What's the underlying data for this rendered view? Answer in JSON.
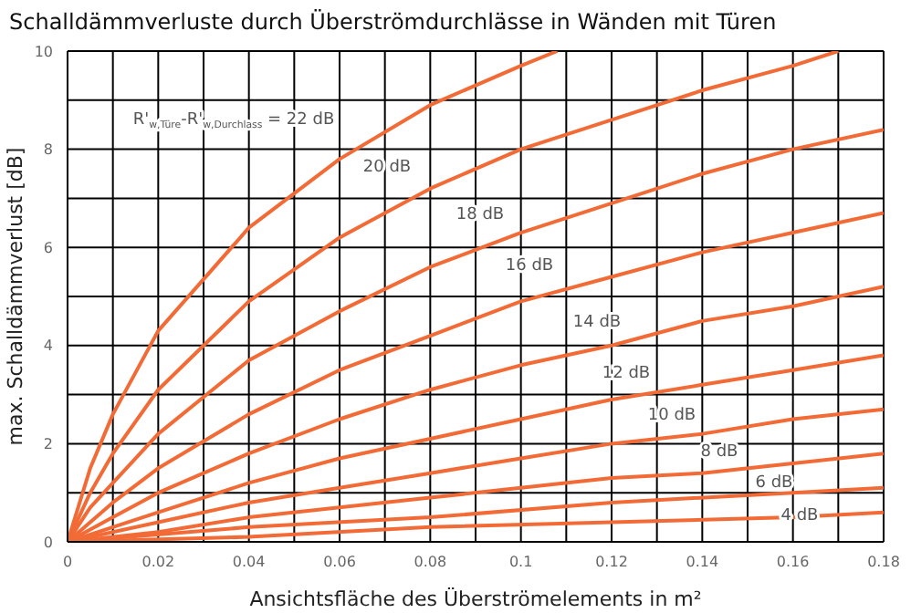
{
  "chart_data": {
    "type": "line",
    "title": "Schalldämmverluste durch Überströmdurchlässe in Wänden mit Türen",
    "xlabel": "Ansichtsfläche des Überströmelements in m²",
    "ylabel": "max. Schalldämmverlust [dB]",
    "xlim": [
      0,
      0.18
    ],
    "ylim": [
      0,
      10
    ],
    "xticks": [
      0,
      {
        "value": 0.01,
        "label": null
      },
      0.02,
      {
        "value": 0.03,
        "label": null
      },
      0.04,
      {
        "value": 0.05,
        "label": null
      },
      0.06,
      {
        "value": 0.07,
        "label": null
      },
      0.08,
      {
        "value": 0.09,
        "label": null
      },
      0.1,
      {
        "value": 0.11,
        "label": null
      },
      0.12,
      {
        "value": 0.13,
        "label": null
      },
      0.14,
      {
        "value": 0.15,
        "label": null
      },
      0.16,
      {
        "value": 0.17,
        "label": null
      },
      0.18
    ],
    "yticks": [
      0,
      {
        "value": 1,
        "label": null
      },
      2,
      {
        "value": 3,
        "label": null
      },
      4,
      {
        "value": 5,
        "label": null
      },
      6,
      {
        "value": 7,
        "label": null
      },
      8,
      {
        "value": 9,
        "label": null
      },
      10
    ],
    "grid": true,
    "legend": false,
    "marker": "none",
    "line_style": "solid",
    "series": [
      {
        "color": "#f26b36",
        "x": [
          0,
          0.005,
          0.01,
          0.02,
          0.04,
          0.06,
          0.08,
          0.1,
          0.108
        ],
        "values": [
          0,
          1.5,
          2.6,
          4.3,
          6.4,
          7.8,
          8.9,
          9.7,
          10
        ]
      },
      {
        "color": "#f26b36",
        "x": [
          0,
          0.005,
          0.01,
          0.02,
          0.04,
          0.06,
          0.08,
          0.1,
          0.12,
          0.14,
          0.16,
          0.17
        ],
        "values": [
          0,
          1,
          1.8,
          3.1,
          4.9,
          6.2,
          7.2,
          8,
          8.6,
          9.2,
          9.7,
          10
        ]
      },
      {
        "color": "#f26b36",
        "x": [
          0,
          0.005,
          0.01,
          0.02,
          0.04,
          0.06,
          0.08,
          0.1,
          0.12,
          0.14,
          0.16,
          0.18
        ],
        "values": [
          0,
          0.7,
          1.2,
          2.2,
          3.7,
          4.7,
          5.6,
          6.3,
          6.9,
          7.5,
          8,
          8.4
        ]
      },
      {
        "color": "#f26b36",
        "x": [
          0,
          0.005,
          0.01,
          0.02,
          0.04,
          0.06,
          0.08,
          0.1,
          0.12,
          0.14,
          0.16,
          0.18
        ],
        "values": [
          0,
          0.4,
          0.8,
          1.5,
          2.6,
          3.5,
          4.2,
          4.9,
          5.4,
          5.9,
          6.3,
          6.7
        ]
      },
      {
        "color": "#f26b36",
        "x": [
          0,
          0.01,
          0.02,
          0.04,
          0.06,
          0.08,
          0.1,
          0.12,
          0.14,
          0.16,
          0.18
        ],
        "values": [
          0,
          0.5,
          1,
          1.8,
          2.5,
          3.1,
          3.6,
          4,
          4.5,
          4.8,
          5.2
        ]
      },
      {
        "color": "#f26b36",
        "x": [
          0,
          0.01,
          0.02,
          0.04,
          0.06,
          0.08,
          0.1,
          0.12,
          0.14,
          0.16,
          0.18
        ],
        "values": [
          0,
          0.3,
          0.6,
          1.2,
          1.7,
          2.1,
          2.5,
          2.9,
          3.2,
          3.5,
          3.8
        ]
      },
      {
        "color": "#f26b36",
        "x": [
          0,
          0.02,
          0.04,
          0.06,
          0.08,
          0.1,
          0.12,
          0.14,
          0.16,
          0.18
        ],
        "values": [
          0,
          0.4,
          0.8,
          1.1,
          1.4,
          1.7,
          2,
          2.2,
          2.5,
          2.7
        ]
      },
      {
        "color": "#f26b36",
        "x": [
          0,
          0.02,
          0.04,
          0.06,
          0.08,
          0.1,
          0.12,
          0.14,
          0.16,
          0.18
        ],
        "values": [
          0,
          0.2,
          0.5,
          0.7,
          0.9,
          1.1,
          1.3,
          1.4,
          1.6,
          1.8
        ]
      },
      {
        "color": "#f26b36",
        "x": [
          0,
          0.04,
          0.08,
          0.12,
          0.16,
          0.18
        ],
        "values": [
          0,
          0.3,
          0.5,
          0.8,
          1,
          1.1
        ]
      },
      {
        "color": "#f26b36",
        "x": [
          0,
          0.04,
          0.08,
          0.12,
          0.16,
          0.18
        ],
        "values": [
          0,
          0.1,
          0.3,
          0.4,
          0.5,
          0.6
        ]
      }
    ],
    "annotations": [
      "R'$_{w,Türe}$-R'$_{w,Durchlass}$ = 22 dB",
      "20 dB",
      "18 dB",
      "16 dB",
      "14 dB",
      "12 dB",
      "10 dB",
      "8 dB",
      "6 dB",
      "4 dB"
    ]
  }
}
